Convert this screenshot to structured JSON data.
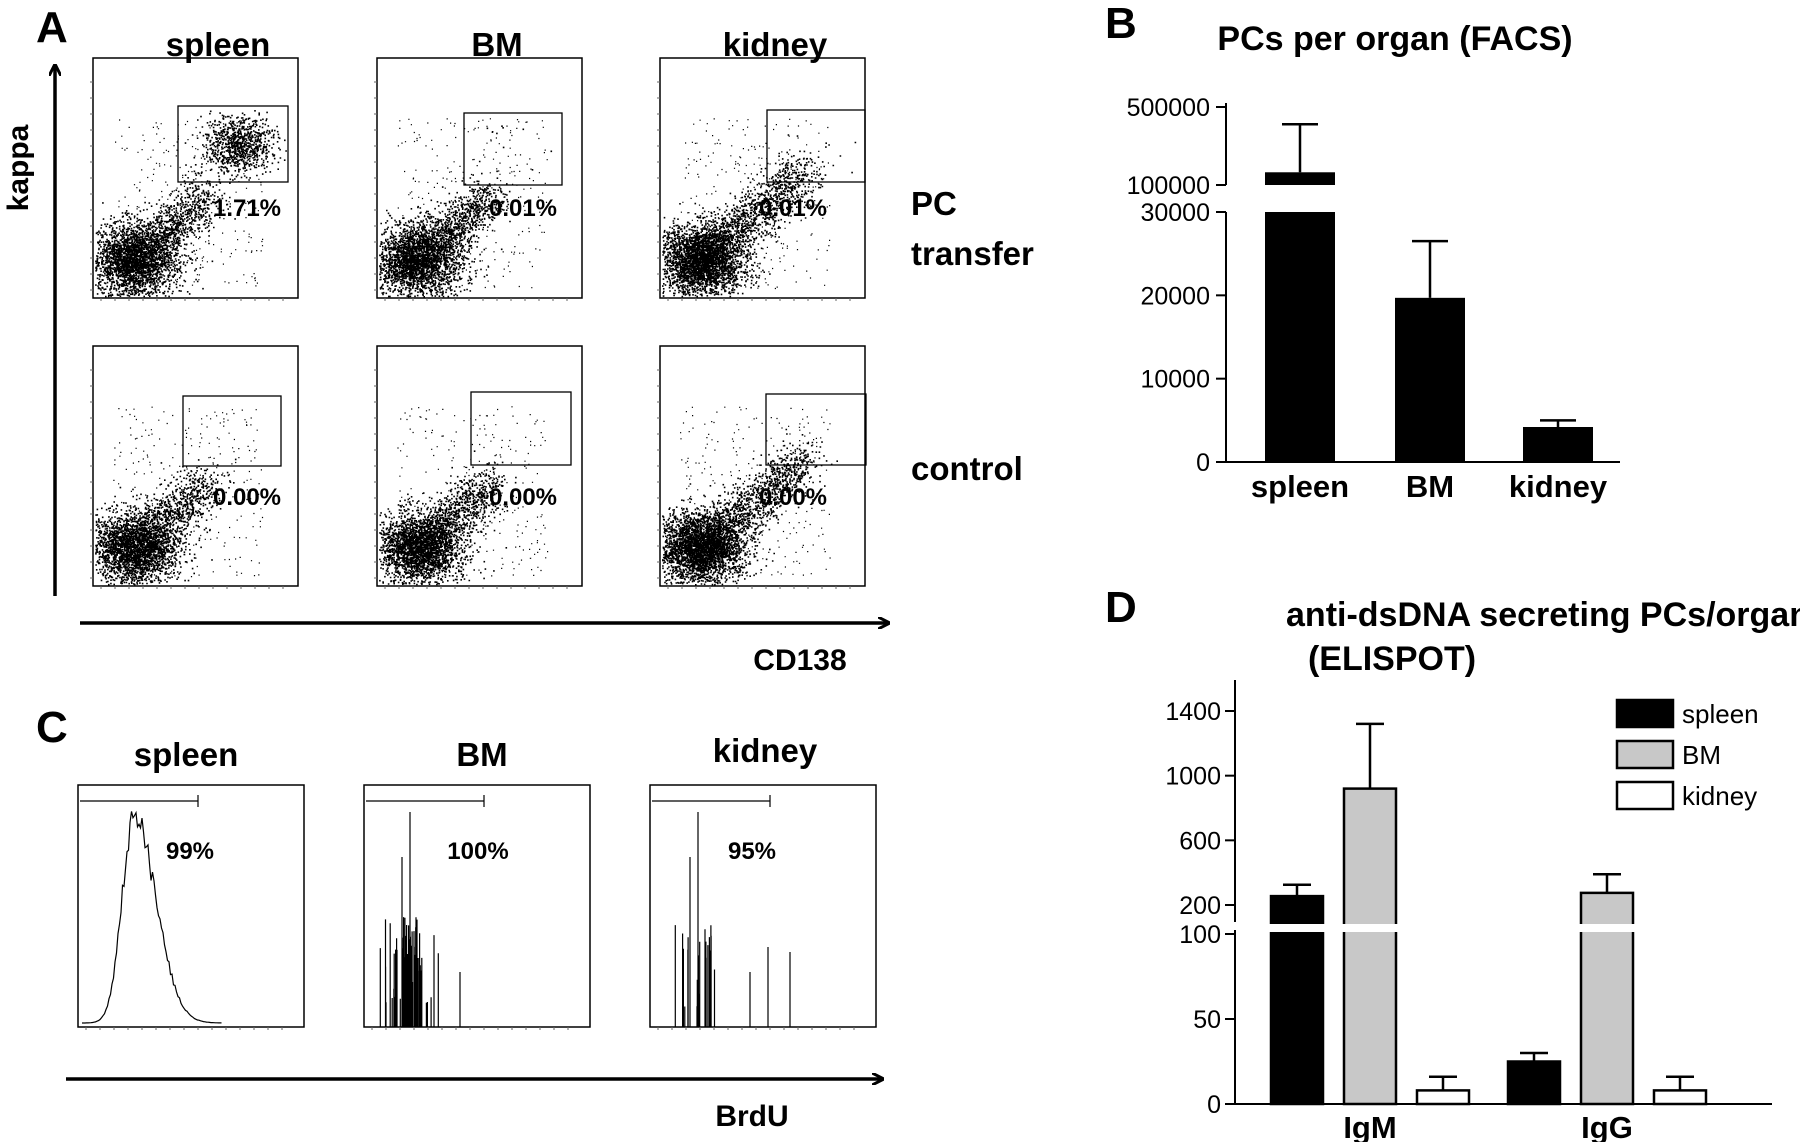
{
  "panel_a": {
    "letter": "A",
    "y_axis": "kappa",
    "x_axis": "CD138",
    "columns": [
      "spleen",
      "BM",
      "kidney"
    ],
    "rows": [
      {
        "label_line1": "PC",
        "label_line2": "transfer",
        "percents": [
          "1.71%",
          "0.01%",
          "0.01%"
        ]
      },
      {
        "label_line1": "control",
        "label_line2": "",
        "percents": [
          "0.00%",
          "0.00%",
          "0.00%"
        ]
      }
    ]
  },
  "panel_c": {
    "letter": "C",
    "x_axis": "BrdU",
    "columns": [
      "spleen",
      "BM",
      "kidney"
    ],
    "percents": [
      "99%",
      "100%",
      "95%"
    ]
  },
  "chart_data": [
    {
      "panel": "B",
      "type": "bar",
      "title": "PCs per organ (FACS)",
      "categories": [
        "spleen",
        "BM",
        "kidney"
      ],
      "values": [
        130000,
        19700,
        4200
      ],
      "errors": [
        220000,
        6800,
        800
      ],
      "y_axis_break": true,
      "y_ticks_lower": [
        0,
        10000,
        20000,
        30000
      ],
      "y_ticks_upper": [
        100000,
        500000
      ],
      "colors": [
        "#000000"
      ]
    },
    {
      "panel": "D",
      "type": "bar",
      "title": "anti-dsDNA secreting PCs/organ",
      "subtitle": "(ELISPOT)",
      "categories": [
        "IgM",
        "IgG"
      ],
      "series": [
        {
          "name": "spleen",
          "color": "#000000",
          "values": [
            255,
            25
          ],
          "errors": [
            70,
            5
          ]
        },
        {
          "name": "BM",
          "color": "#c8c8c8",
          "values": [
            920,
            275
          ],
          "errors": [
            400,
            115
          ]
        },
        {
          "name": "kidney",
          "color": "#ffffff",
          "values": [
            8,
            8
          ],
          "errors": [
            8,
            8
          ]
        }
      ],
      "y_axis_break": true,
      "y_ticks_lower": [
        0,
        50,
        100
      ],
      "y_ticks_upper": [
        200,
        600,
        1000,
        1400
      ],
      "legend_position": "top-right"
    }
  ]
}
